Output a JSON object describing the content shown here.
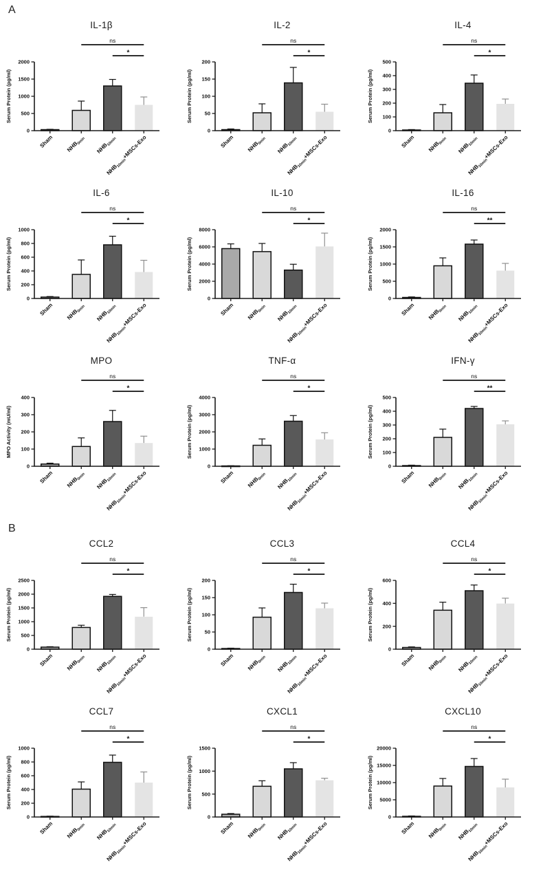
{
  "panels": [
    {
      "label": "A"
    },
    {
      "label": "B"
    }
  ],
  "chart_data": {
    "type": "bar",
    "categories": [
      "Sham",
      "NHB0min",
      "NHB10min",
      "NHB10min+MSCs-Exo"
    ],
    "categories_rich": [
      [
        {
          "t": "Sham"
        }
      ],
      [
        {
          "t": "NHB"
        },
        {
          "t": "0min",
          "sub": true
        }
      ],
      [
        {
          "t": "NHB"
        },
        {
          "t": "10min",
          "sub": true
        }
      ],
      [
        {
          "t": "NHB"
        },
        {
          "t": "10min",
          "sub": true
        },
        {
          "t": "+MSCs-Exo"
        }
      ]
    ],
    "bar_colors": [
      "#a9a9a9",
      "#d9d9d9",
      "#595959",
      "#e4e4e4"
    ],
    "bar_strokes": [
      "#111111",
      "#111111",
      "#111111",
      "none"
    ],
    "err_colors": [
      "#111111",
      "#111111",
      "#111111",
      "#8f8f8f"
    ],
    "legend_position": "none",
    "grid": false,
    "charts": [
      {
        "panel": "A",
        "title": "IL-1β",
        "ylabel": "Serum Protein (pg/ml)",
        "ylim": [
          0,
          2000
        ],
        "yticks": [
          0,
          500,
          1000,
          1500,
          2000
        ],
        "values": [
          30,
          590,
          1300,
          750
        ],
        "errors": [
          10,
          270,
          190,
          230
        ],
        "sig": [
          {
            "label": "ns",
            "from": 1,
            "to": 3
          },
          {
            "label": "*",
            "from": 2,
            "to": 3
          }
        ]
      },
      {
        "panel": "A",
        "title": "IL-2",
        "ylabel": "Serum Protein (pg/ml)",
        "ylim": [
          0,
          200
        ],
        "yticks": [
          0,
          50,
          100,
          150,
          200
        ],
        "values": [
          3,
          52,
          139,
          55
        ],
        "errors": [
          2,
          26,
          45,
          22
        ],
        "sig": [
          {
            "label": "ns",
            "from": 1,
            "to": 3
          },
          {
            "label": "*",
            "from": 2,
            "to": 3
          }
        ]
      },
      {
        "panel": "A",
        "title": "IL-4",
        "ylabel": "Serum Protein (pg/ml)",
        "ylim": [
          0,
          500
        ],
        "yticks": [
          0,
          100,
          200,
          300,
          400,
          500
        ],
        "values": [
          5,
          130,
          345,
          195
        ],
        "errors": [
          3,
          60,
          60,
          35
        ],
        "sig": [
          {
            "label": "ns",
            "from": 1,
            "to": 3
          },
          {
            "label": "*",
            "from": 2,
            "to": 3
          }
        ]
      },
      {
        "panel": "A",
        "title": "IL-6",
        "ylabel": "Serum Protein (pg/ml)",
        "ylim": [
          0,
          1000
        ],
        "yticks": [
          0,
          200,
          400,
          600,
          800,
          1000
        ],
        "values": [
          20,
          350,
          780,
          385
        ],
        "errors": [
          8,
          210,
          125,
          170
        ],
        "sig": [
          {
            "label": "ns",
            "from": 1,
            "to": 3
          },
          {
            "label": "*",
            "from": 2,
            "to": 3
          }
        ]
      },
      {
        "panel": "A",
        "title": "IL-10",
        "ylabel": "Serum Protein (pg/ml)",
        "ylim": [
          0,
          8000
        ],
        "yticks": [
          0,
          2000,
          4000,
          6000,
          8000
        ],
        "values": [
          5800,
          5450,
          3300,
          6050
        ],
        "errors": [
          550,
          950,
          680,
          1550
        ],
        "sig": [
          {
            "label": "ns",
            "from": 1,
            "to": 3
          },
          {
            "label": "*",
            "from": 2,
            "to": 3
          }
        ]
      },
      {
        "panel": "A",
        "title": "IL-16",
        "ylabel": "Serum Protein (pg/ml)",
        "ylim": [
          0,
          2000
        ],
        "yticks": [
          0,
          500,
          1000,
          1500,
          2000
        ],
        "values": [
          30,
          950,
          1580,
          810
        ],
        "errors": [
          15,
          230,
          120,
          210
        ],
        "sig": [
          {
            "label": "ns",
            "from": 1,
            "to": 3
          },
          {
            "label": "**",
            "from": 2,
            "to": 3
          }
        ]
      },
      {
        "panel": "A",
        "title": "MPO",
        "ylabel": "MPO Activity (mU/ml)",
        "ylim": [
          0,
          400
        ],
        "yticks": [
          0,
          100,
          200,
          300,
          400
        ],
        "values": [
          13,
          115,
          260,
          135
        ],
        "errors": [
          5,
          50,
          65,
          40
        ],
        "sig": [
          {
            "label": "ns",
            "from": 1,
            "to": 3
          },
          {
            "label": "*",
            "from": 2,
            "to": 3
          }
        ]
      },
      {
        "panel": "A",
        "title": "TNF-α",
        "ylabel": "Serum Protein (pg/ml)",
        "ylim": [
          0,
          4000
        ],
        "yticks": [
          0,
          1000,
          2000,
          3000,
          4000
        ],
        "values": [
          20,
          1220,
          2620,
          1560
        ],
        "errors": [
          10,
          370,
          330,
          390
        ],
        "sig": [
          {
            "label": "ns",
            "from": 1,
            "to": 3
          },
          {
            "label": "*",
            "from": 2,
            "to": 3
          }
        ]
      },
      {
        "panel": "A",
        "title": "IFN-γ",
        "ylabel": "Serum Protein (pg/ml)",
        "ylim": [
          0,
          500
        ],
        "yticks": [
          0,
          100,
          200,
          300,
          400,
          500
        ],
        "values": [
          5,
          210,
          420,
          305
        ],
        "errors": [
          3,
          60,
          15,
          25
        ],
        "sig": [
          {
            "label": "ns",
            "from": 1,
            "to": 3
          },
          {
            "label": "**",
            "from": 2,
            "to": 3
          }
        ]
      },
      {
        "panel": "B",
        "title": "CCL2",
        "ylabel": "Serum Protein (pg/ml)",
        "ylim": [
          0,
          2500
        ],
        "yticks": [
          0,
          500,
          1000,
          1500,
          2000,
          2500
        ],
        "values": [
          75,
          790,
          1920,
          1180
        ],
        "errors": [
          15,
          80,
          70,
          330
        ],
        "sig": [
          {
            "label": "ns",
            "from": 1,
            "to": 3
          },
          {
            "label": "*",
            "from": 2,
            "to": 3
          }
        ]
      },
      {
        "panel": "B",
        "title": "CCL3",
        "ylabel": "Serum Protein (pg/ml)",
        "ylim": [
          0,
          200
        ],
        "yticks": [
          0,
          50,
          100,
          150,
          200
        ],
        "values": [
          2,
          93,
          165,
          119
        ],
        "errors": [
          1,
          27,
          24,
          15
        ],
        "sig": [
          {
            "label": "ns",
            "from": 1,
            "to": 3
          },
          {
            "label": "*",
            "from": 2,
            "to": 3
          }
        ]
      },
      {
        "panel": "B",
        "title": "CCL4",
        "ylabel": "Serum Protein (pg/ml)",
        "ylim": [
          0,
          600
        ],
        "yticks": [
          0,
          200,
          400,
          600
        ],
        "values": [
          15,
          340,
          510,
          398
        ],
        "errors": [
          5,
          70,
          50,
          47
        ],
        "sig": [
          {
            "label": "ns",
            "from": 1,
            "to": 3
          },
          {
            "label": "*",
            "from": 2,
            "to": 3
          }
        ]
      },
      {
        "panel": "B",
        "title": "CCL7",
        "ylabel": "Serum Protein (pg/ml)",
        "ylim": [
          0,
          1000
        ],
        "yticks": [
          0,
          200,
          400,
          600,
          800,
          1000
        ],
        "values": [
          8,
          405,
          795,
          500
        ],
        "errors": [
          4,
          105,
          105,
          155
        ],
        "sig": [
          {
            "label": "ns",
            "from": 1,
            "to": 3
          },
          {
            "label": "*",
            "from": 2,
            "to": 3
          }
        ]
      },
      {
        "panel": "B",
        "title": "CXCL1",
        "ylabel": "Serum Protein (pg/ml)",
        "ylim": [
          0,
          1500
        ],
        "yticks": [
          0,
          500,
          1000,
          1500
        ],
        "values": [
          60,
          670,
          1050,
          800
        ],
        "errors": [
          15,
          120,
          135,
          45
        ],
        "sig": [
          {
            "label": "ns",
            "from": 1,
            "to": 3
          },
          {
            "label": "*",
            "from": 2,
            "to": 3
          }
        ]
      },
      {
        "panel": "B",
        "title": "CXCL10",
        "ylabel": "Serum Protein (pg/ml)",
        "ylim": [
          0,
          20000
        ],
        "yticks": [
          0,
          5000,
          10000,
          15000,
          20000
        ],
        "values": [
          200,
          9000,
          14700,
          8600
        ],
        "errors": [
          100,
          2200,
          2300,
          2400
        ],
        "sig": [
          {
            "label": "ns",
            "from": 1,
            "to": 3
          },
          {
            "label": "*",
            "from": 2,
            "to": 3
          }
        ]
      }
    ]
  }
}
